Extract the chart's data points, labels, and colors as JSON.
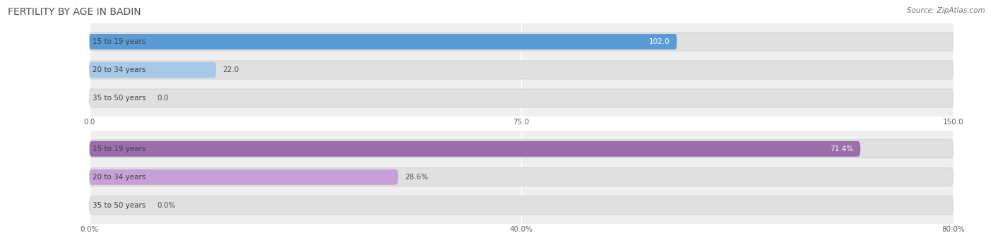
{
  "title": "FERTILITY BY AGE IN BADIN",
  "source": "Source: ZipAtlas.com",
  "top_chart": {
    "categories": [
      "15 to 19 years",
      "20 to 34 years",
      "35 to 50 years"
    ],
    "values": [
      102.0,
      22.0,
      0.0
    ],
    "xlim": [
      0,
      150
    ],
    "xticks": [
      0.0,
      75.0,
      150.0
    ],
    "xtick_labels": [
      "0.0",
      "75.0",
      "150.0"
    ],
    "bar_color_dark": "#5b9bd5",
    "bar_color_light": "#a8c8e8",
    "value_labels": [
      "102.0",
      "22.0",
      "0.0"
    ]
  },
  "bottom_chart": {
    "categories": [
      "15 to 19 years",
      "20 to 34 years",
      "35 to 50 years"
    ],
    "values": [
      71.4,
      28.6,
      0.0
    ],
    "xlim": [
      0,
      80
    ],
    "xticks": [
      0.0,
      40.0,
      80.0
    ],
    "xtick_labels": [
      "0.0%",
      "40.0%",
      "80.0%"
    ],
    "bar_color_dark": "#9b6dab",
    "bar_color_light": "#c8a0d8",
    "value_labels": [
      "71.4%",
      "28.6%",
      "0.0%"
    ]
  },
  "fig_bg": "#ffffff",
  "chart_bg": "#efefef",
  "bar_bg_color": "#e0e0e0",
  "label_fontsize": 7.5,
  "value_fontsize": 7.5,
  "title_fontsize": 10,
  "tick_fontsize": 7.5
}
